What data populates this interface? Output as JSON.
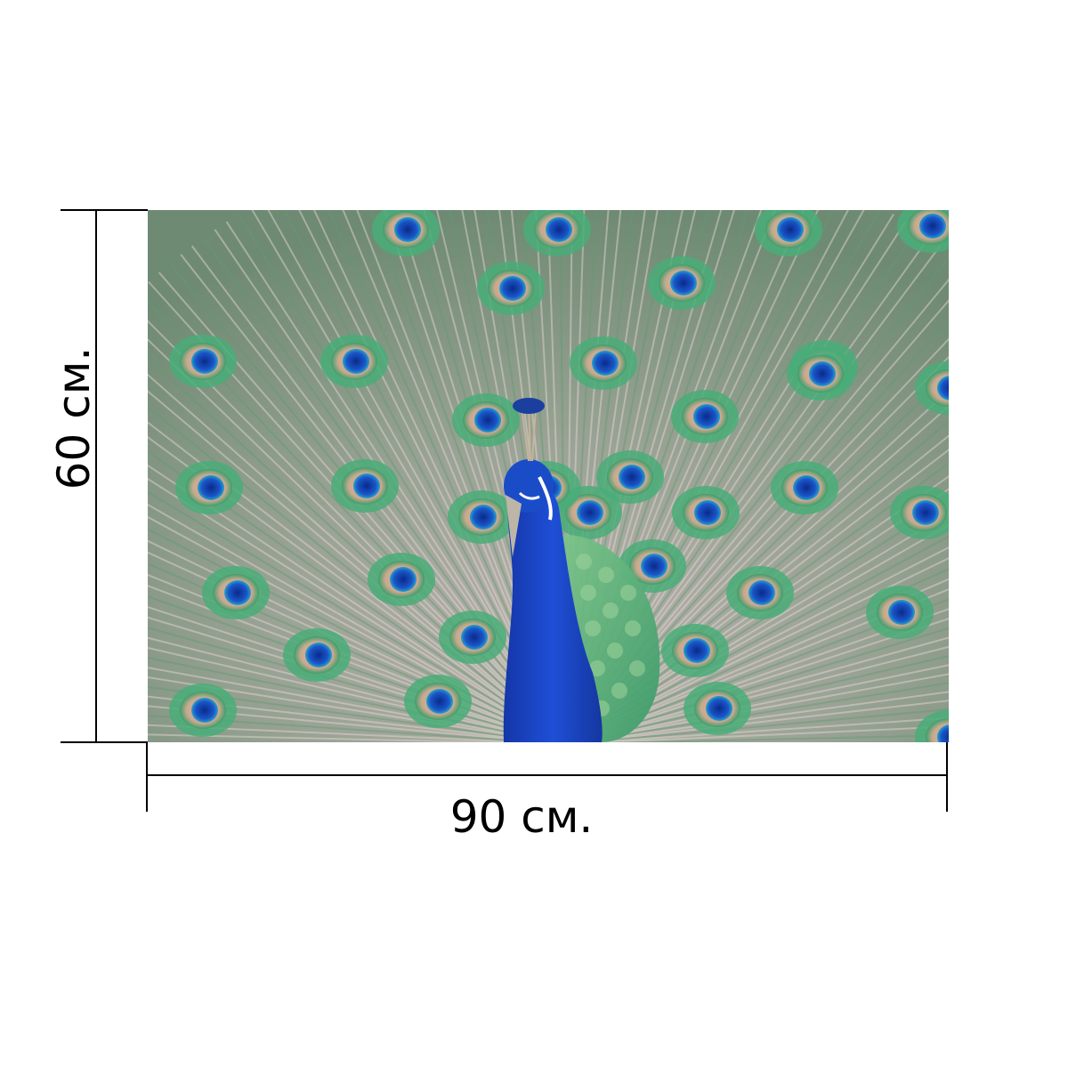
{
  "product": {
    "image_subject": "peacock-photo",
    "width_label": "90 см.",
    "height_label": "60 см."
  },
  "colors": {
    "line": "#000000",
    "background": "#ffffff",
    "peacock_blue": "#1f3fbf",
    "feather_green": "#4fae7a"
  }
}
